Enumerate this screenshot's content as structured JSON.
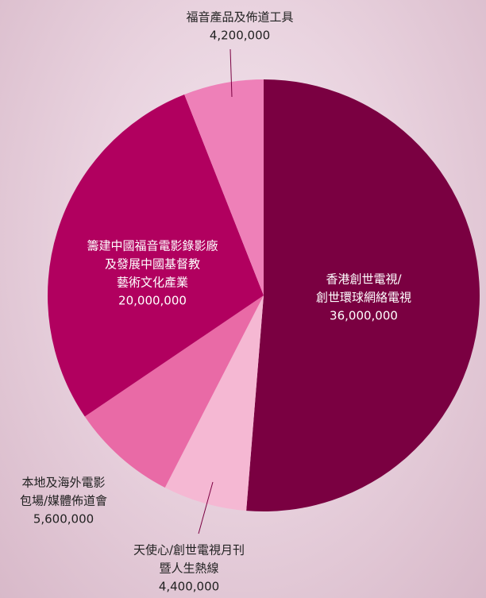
{
  "chart_data": {
    "type": "pie",
    "categories": [
      [
        "香港創世電視/",
        "創世環球網絡電視"
      ],
      [
        "天使心/創世電視月刊",
        "暨人生熱線"
      ],
      [
        "本地及海外電影",
        "包場/媒體佈道會"
      ],
      [
        "籌建中國福音電影錄影廠",
        "及發展中國基督教",
        "藝術文化產業"
      ],
      [
        "福音產品及佈道工具"
      ]
    ],
    "values": [
      36000000,
      4400000,
      5600000,
      20000000,
      4200000
    ],
    "value_labels": [
      "36,000,000",
      "4,400,000",
      "5,600,000",
      "20,000,000",
      "4,200,000"
    ],
    "colors": [
      "#7a0041",
      "#f5b8d3",
      "#e96aa6",
      "#b1005f",
      "#ee80b8"
    ]
  }
}
